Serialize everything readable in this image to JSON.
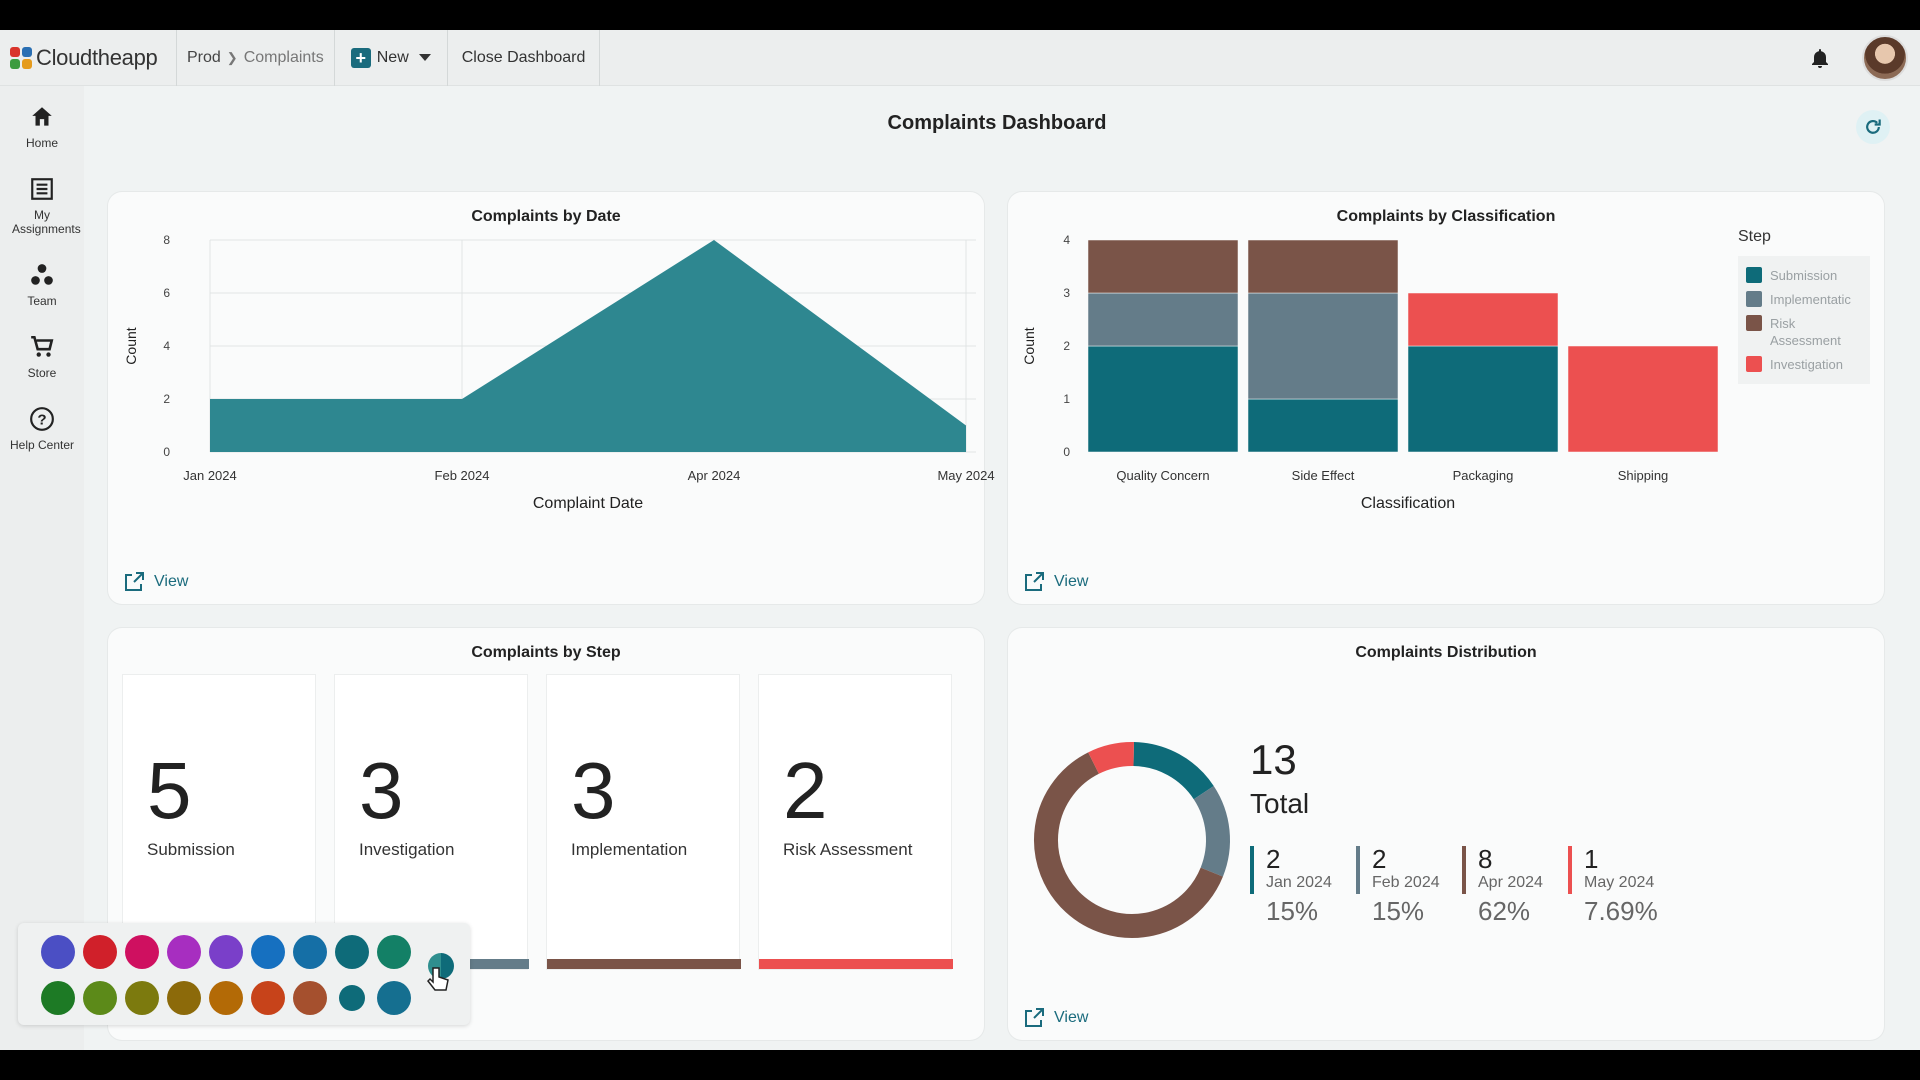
{
  "header": {
    "logo_text": "Cloudtheapp",
    "breadcrumb": [
      "Prod",
      "Complaints"
    ],
    "new_label": "New",
    "close_label": "Close Dashboard"
  },
  "sidebar": {
    "items": [
      {
        "label": "Home",
        "icon": "home-icon"
      },
      {
        "label": "My Assignments",
        "icon": "assignments-icon"
      },
      {
        "label": "Team",
        "icon": "team-icon"
      },
      {
        "label": "Store",
        "icon": "cart-icon"
      },
      {
        "label": "Help Center",
        "icon": "help-icon"
      }
    ]
  },
  "dashboard": {
    "title": "Complaints Dashboard",
    "view_label": "View"
  },
  "cards": {
    "by_date_title": "Complaints by Date",
    "by_class_title": "Complaints by Classification",
    "by_step_title": "Complaints by Step",
    "distribution_title": "Complaints Distribution"
  },
  "chart_data": [
    {
      "type": "area",
      "title": "Complaints by Date",
      "xlabel": "Complaint Date",
      "ylabel": "Count",
      "x": [
        "Jan 2024",
        "Feb 2024",
        "Apr 2024",
        "May 2024"
      ],
      "values": [
        2,
        2,
        8,
        1
      ],
      "ylim": [
        0,
        8
      ],
      "yticks": [
        0,
        2,
        4,
        6,
        8
      ],
      "grid": true,
      "color": "#2e8790"
    },
    {
      "type": "bar",
      "stacked": true,
      "title": "Complaints by Classification",
      "xlabel": "Classification",
      "ylabel": "Count",
      "categories": [
        "Quality Concern",
        "Side Effect",
        "Packaging",
        "Shipping"
      ],
      "ylim": [
        0,
        4
      ],
      "yticks": [
        0,
        1,
        2,
        3,
        4
      ],
      "legend_title": "Step",
      "legend_position": "right",
      "series": [
        {
          "name": "Submission",
          "legend_label": "Submission",
          "color": "#0e6b79",
          "values": [
            2,
            1,
            2,
            0
          ]
        },
        {
          "name": "Implementation",
          "legend_label": "Implementatic",
          "color": "#647c89",
          "values": [
            1,
            2,
            0,
            0
          ]
        },
        {
          "name": "Risk Assessment",
          "legend_label": "Risk Assessment",
          "color": "#7a5448",
          "values": [
            1,
            1,
            0,
            0
          ]
        },
        {
          "name": "Investigation",
          "legend_label": "Investigation",
          "color": "#ec5050",
          "values": [
            0,
            0,
            1,
            2
          ]
        }
      ]
    },
    {
      "type": "pie",
      "title": "Complaints Distribution",
      "total": 13,
      "total_label": "Total",
      "categories": [
        "Jan 2024",
        "Feb 2024",
        "Apr 2024",
        "May 2024"
      ],
      "values": [
        2,
        2,
        8,
        1
      ],
      "percent_labels": [
        "15%",
        "15%",
        "62%",
        "7.69%"
      ],
      "colors": [
        "#0e6b79",
        "#647c89",
        "#7a5448",
        "#ec5050"
      ]
    }
  ],
  "steps": [
    {
      "value": "5",
      "label": "Submission",
      "color": "#0e6b79"
    },
    {
      "value": "3",
      "label": "Investigation",
      "color": "#647c89"
    },
    {
      "value": "3",
      "label": "Implementation",
      "color": "#7a5448"
    },
    {
      "value": "2",
      "label": "Risk Assessment",
      "color": "#ec5050"
    }
  ],
  "color_picker": {
    "row1": [
      "#4b4fc4",
      "#d0202a",
      "#cf1060",
      "#a72ec0",
      "#7a3fc9",
      "#1670c0",
      "#156fa6",
      "#0e6b79",
      "#138066"
    ],
    "row2": [
      "#1d7a25",
      "#5c8a19",
      "#7c7a0e",
      "#8c6a0a",
      "#b36a06",
      "#c7431a",
      "#a5502e",
      "#0e6b79",
      "#156f90"
    ]
  }
}
